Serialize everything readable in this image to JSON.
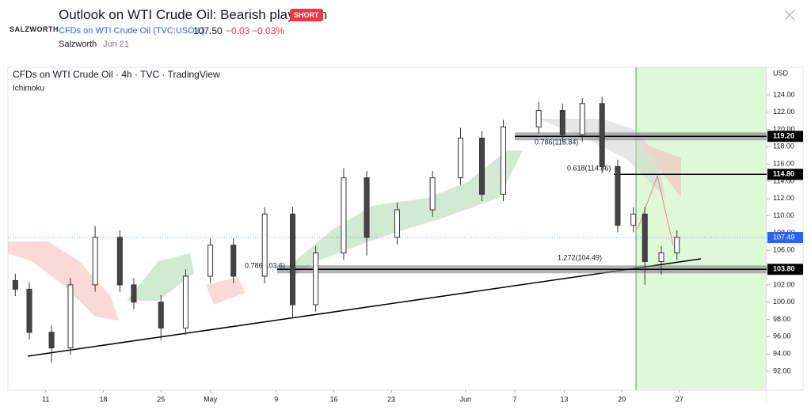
{
  "header": {
    "logo": "SALZWORTH",
    "title": "Outlook on WTI Crude Oil: Bearish play seen",
    "badge": "SHORT",
    "symbol": "CFDs on WTI Crude Oil (TVC:USOIL)",
    "price": "107.50",
    "change": "−0.03",
    "change_pct": "−0.03%",
    "author": "Salzworth",
    "date": "Jun 21"
  },
  "chart_data": {
    "type": "candlestick",
    "title": "CFDs on WTI Crude Oil · 4h · TVC · TradingView",
    "indicator": "Ichimoku",
    "y_axis_label": "USD",
    "x": [
      7.3,
      9,
      11.7,
      14,
      17,
      20,
      21.7,
      25,
      28,
      31,
      33.8,
      37.6,
      41,
      43.8,
      47.2,
      50,
      53.7,
      58,
      61.4,
      64,
      66.6,
      70.9,
      73.8,
      76.2,
      78.6,
      80.5,
      82.4,
      83.8,
      85.8,
      87.7
    ],
    "open": [
      102.5,
      101.5,
      96.5,
      94.7,
      102,
      107.5,
      102,
      100,
      97,
      103,
      106.6,
      103,
      110.2,
      99.7,
      105.7,
      114.4,
      107.5,
      110.7,
      114.4,
      119,
      112.5,
      120.3,
      122.2,
      119.4,
      123,
      115.7,
      108.9,
      110.2,
      104.7,
      105.7
    ],
    "high": [
      103.3,
      102.3,
      97.3,
      102.8,
      108.8,
      108.3,
      102.8,
      100.8,
      103.8,
      107.4,
      107.4,
      111,
      111,
      106.5,
      115.5,
      115.2,
      111.5,
      115.2,
      120.2,
      119.8,
      121.1,
      123.2,
      123,
      123.6,
      123.8,
      116.5,
      111,
      111,
      106.5,
      108.3
    ],
    "low": [
      100.7,
      95.7,
      93,
      93.9,
      101.2,
      101.2,
      99.2,
      95.6,
      96.2,
      102.2,
      102.2,
      102.2,
      98.3,
      98.9,
      104.9,
      105.4,
      106.7,
      109.9,
      113.6,
      111.7,
      111.7,
      119.5,
      118.6,
      118.6,
      114.9,
      108.1,
      108.1,
      102,
      103.2,
      104.9
    ],
    "close": [
      101.5,
      96.5,
      94.7,
      102,
      107.5,
      102,
      100,
      97,
      103,
      106.6,
      103,
      110.2,
      99.7,
      105.7,
      114.4,
      107.5,
      110.7,
      114.4,
      119,
      112.5,
      120.3,
      122.2,
      119.4,
      123,
      115.7,
      108.9,
      110.2,
      104.7,
      105.7,
      107.5
    ],
    "xlim": [
      6.4,
      98.6
    ],
    "xticks": [
      11,
      18,
      25,
      {
        "value": 31,
        "label": "May"
      },
      {
        "value": 39,
        "label": "9"
      },
      {
        "value": 46,
        "label": "16"
      },
      {
        "value": 53,
        "label": "23"
      },
      {
        "value": 62,
        "label": "Jun"
      },
      {
        "value": 68,
        "label": "7"
      },
      {
        "value": 74,
        "label": "13"
      },
      {
        "value": 81,
        "label": "20"
      },
      {
        "value": 88,
        "label": "27"
      }
    ],
    "ylim": [
      89.8,
      127.2
    ],
    "yticks": [
      {
        "value": 92,
        "label": "92.00"
      },
      {
        "value": 94,
        "label": "94.00"
      },
      {
        "value": 96,
        "label": "96.00"
      },
      {
        "value": 98,
        "label": "98.00"
      },
      {
        "value": 100,
        "label": "100.00"
      },
      {
        "value": 102,
        "label": "102.00"
      },
      {
        "value": 104,
        "label": "104.00"
      },
      {
        "value": 106,
        "label": "106.00"
      },
      {
        "value": 108,
        "label": "108.00"
      },
      {
        "value": 110,
        "label": "110.00"
      },
      {
        "value": 112,
        "label": "112.00"
      },
      {
        "value": 114,
        "label": "114.00"
      },
      {
        "value": 116,
        "label": "116.00"
      },
      {
        "value": 118,
        "label": "118.00"
      },
      {
        "value": 120,
        "label": "120.00"
      },
      {
        "value": 122,
        "label": "122.00"
      },
      {
        "value": 124,
        "label": "124.00"
      }
    ],
    "levels": [
      {
        "value": 119.2,
        "label": "119.20"
      },
      {
        "value": 114.8,
        "label": "114.80"
      },
      {
        "value": 103.8,
        "label": "103.80"
      }
    ],
    "current_price": {
      "value": 107.49,
      "label": "107.49"
    },
    "annotations": [
      "0.786(118.84)",
      "0.618(114.86)",
      "0.786(103.6)",
      "1.272(104.49)"
    ]
  }
}
